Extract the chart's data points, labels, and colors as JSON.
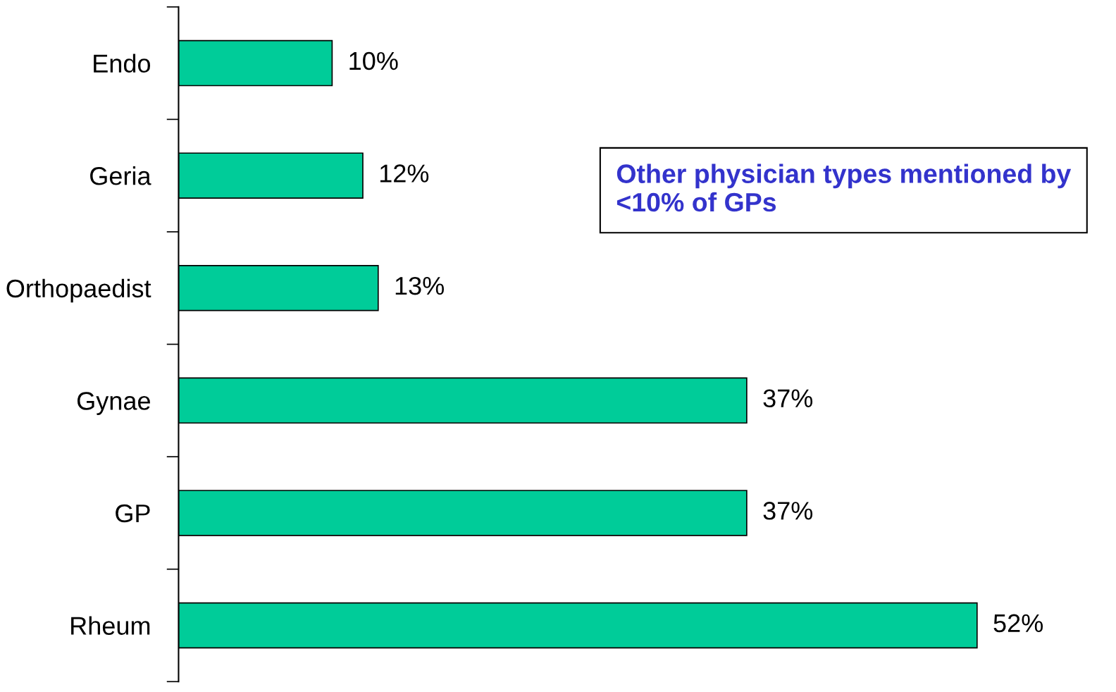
{
  "chart_data": {
    "type": "bar",
    "orientation": "horizontal",
    "categories": [
      "Endo",
      "Geria",
      "Orthopaedist",
      "Gynae",
      "GP",
      "Rheum"
    ],
    "values": [
      10,
      12,
      13,
      37,
      37,
      52
    ],
    "value_labels": [
      "10%",
      "12%",
      "13%",
      "37%",
      "37%",
      "52%"
    ],
    "color": "#00cc99",
    "annotations": [
      "Other physician types mentioned by <10% of GPs"
    ],
    "grid": false,
    "legend": false
  }
}
